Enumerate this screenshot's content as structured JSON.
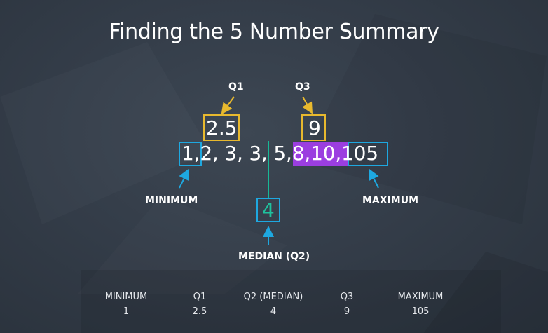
{
  "slide": {
    "title": "Finding the 5 Number Summary"
  },
  "labels": {
    "q1": "Q1",
    "q3": "Q3",
    "minimum": "MINIMUM",
    "maximum": "MAXIMUM",
    "median": "MEDIAN (Q2)"
  },
  "values": {
    "q1": "2.5",
    "q3": "9",
    "median": "4"
  },
  "sequence": [
    "1",
    "2",
    "3",
    "3",
    "5",
    "8",
    "10",
    "105"
  ],
  "separator": ",",
  "summary_table": {
    "headers": [
      "MINIMUM",
      "Q1",
      "Q2 (MEDIAN)",
      "Q3",
      "MAXIMUM"
    ],
    "values": [
      "1",
      "2.5",
      "4",
      "9",
      "105"
    ]
  },
  "colors": {
    "background": "#2f3844",
    "quartile_box": "#e8b92e",
    "extreme_box": "#1ea8e0",
    "median_line": "#17b897",
    "upper_half_highlight": "#9b3ee0"
  }
}
